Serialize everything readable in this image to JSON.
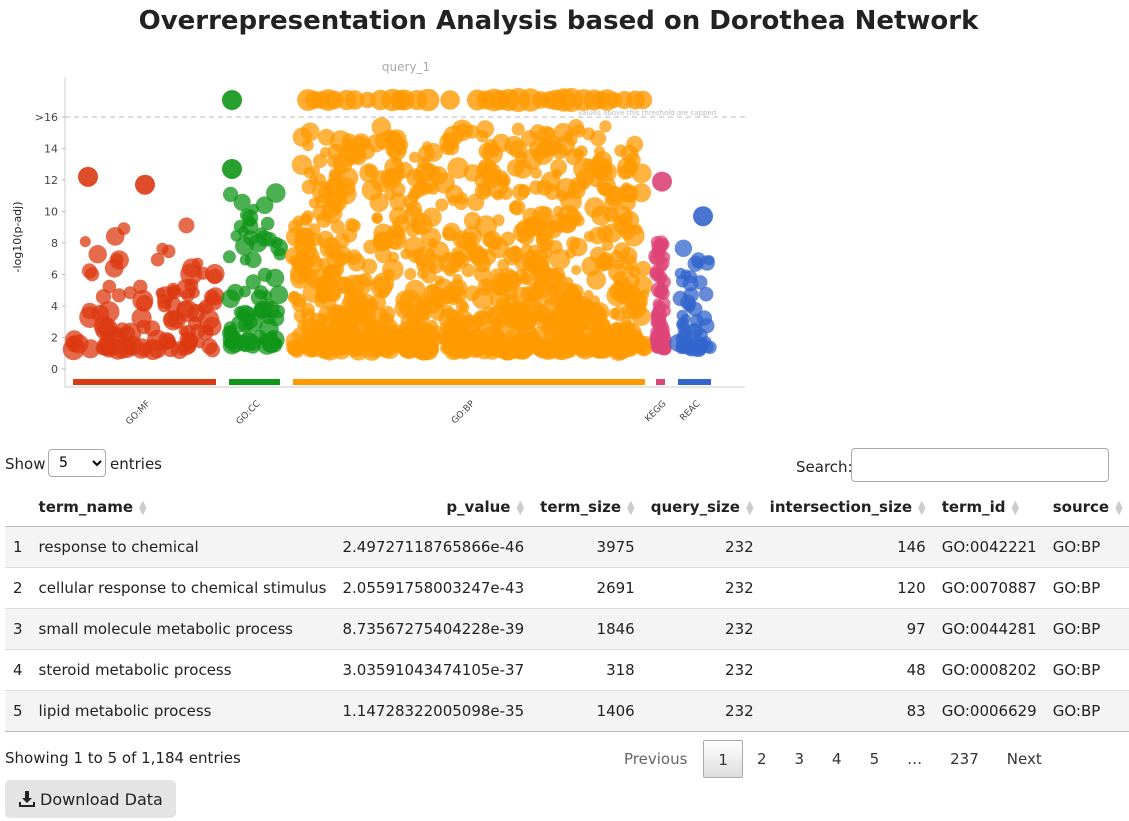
{
  "page": {
    "title": "Overrepresentation Analysis based on Dorothea Network"
  },
  "chart_data": {
    "type": "scatter",
    "title": "query_1",
    "xlabel": "",
    "ylabel": "-log10(p-adj)",
    "ylim": [
      0,
      16
    ],
    "y_ticks": [
      "0",
      "2",
      "4",
      "6",
      "8",
      "10",
      "12",
      "14",
      ">16"
    ],
    "threshold_label": "values above this threshold are capped",
    "sources": [
      {
        "name": "GO:MF",
        "color": "#dc3912"
      },
      {
        "name": "GO:CC",
        "color": "#109618"
      },
      {
        "name": "GO:BP",
        "color": "#ff9900"
      },
      {
        "name": "KEGG",
        "color": "#dd4477"
      },
      {
        "name": "REAC",
        "color": "#3366cc"
      }
    ],
    "highlighted_points": [
      {
        "source": "GO:MF",
        "y": 12.2
      },
      {
        "source": "GO:MF",
        "y": 11.7
      },
      {
        "source": "GO:CC",
        "y": 16.5
      },
      {
        "source": "GO:CC",
        "y": 12.7
      },
      {
        "source": "GO:BP",
        "y": 16.5
      },
      {
        "source": "KEGG",
        "y": 11.9
      },
      {
        "source": "REAC",
        "y": 9.7
      }
    ]
  },
  "table": {
    "show_label": "Show",
    "length_value": "5",
    "entries_label": "entries",
    "search_label": "Search:",
    "search_value": "",
    "columns": [
      "",
      "term_name",
      "p_value",
      "term_size",
      "query_size",
      "intersection_size",
      "term_id",
      "source"
    ],
    "rows": [
      [
        "1",
        "response to chemical",
        "2.49727118765866e-46",
        "3975",
        "232",
        "146",
        "GO:0042221",
        "GO:BP"
      ],
      [
        "2",
        "cellular response to chemical stimulus",
        "2.05591758003247e-43",
        "2691",
        "232",
        "120",
        "GO:0070887",
        "GO:BP"
      ],
      [
        "3",
        "small molecule metabolic process",
        "8.73567275404228e-39",
        "1846",
        "232",
        "97",
        "GO:0044281",
        "GO:BP"
      ],
      [
        "4",
        "steroid metabolic process",
        "3.03591043474105e-37",
        "318",
        "232",
        "48",
        "GO:0008202",
        "GO:BP"
      ],
      [
        "5",
        "lipid metabolic process",
        "1.14728322005098e-35",
        "1406",
        "232",
        "83",
        "GO:0006629",
        "GO:BP"
      ]
    ],
    "info": "Showing 1 to 5 of 1,184 entries",
    "pagination": [
      "Previous",
      "1",
      "2",
      "3",
      "4",
      "5",
      "…",
      "237",
      "Next"
    ],
    "current_page": "1"
  },
  "download": {
    "label": "Download Data",
    "icon": "download-icon"
  }
}
